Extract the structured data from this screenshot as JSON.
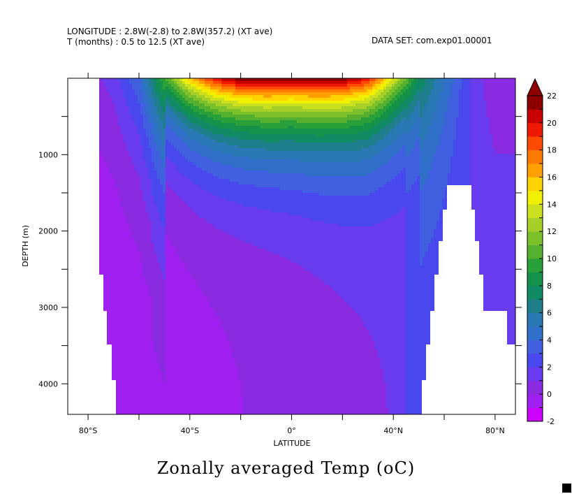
{
  "header": {
    "line1": "LONGITUDE : 2.8W(-2.8) to 2.8W(357.2) (XT ave)",
    "line2": "T (months) : 0.5 to 12.5 (XT ave)",
    "dataset": "DATA SET: com.exp01.00001"
  },
  "chart_data": {
    "type": "filled-contour",
    "title": "Zonally averaged Temp (oC)",
    "xlabel": "LATITUDE",
    "ylabel": "DEPTH (m)",
    "xlim": [
      -88,
      88
    ],
    "ylim": [
      4400,
      0
    ],
    "y_inverted": true,
    "x_ticks": [
      {
        "value": -80,
        "label": "80°S"
      },
      {
        "value": -40,
        "label": "40°S"
      },
      {
        "value": 0,
        "label": "0°"
      },
      {
        "value": 40,
        "label": "40°N"
      },
      {
        "value": 80,
        "label": "80°N"
      }
    ],
    "x_minor_ticks": [
      -60,
      -20,
      20,
      60
    ],
    "y_ticks": [
      {
        "value": 1000,
        "label": "1000"
      },
      {
        "value": 2000,
        "label": "2000"
      },
      {
        "value": 3000,
        "label": "3000"
      },
      {
        "value": 4000,
        "label": "4000"
      }
    ],
    "y_minor_ticks": [
      500,
      1500,
      2500,
      3500
    ],
    "colorbar": {
      "min": -2,
      "max": 22,
      "step": 1,
      "labels": [
        "-2",
        "0",
        "2",
        "4",
        "6",
        "8",
        "10",
        "12",
        "14",
        "16",
        "18",
        "20",
        "22"
      ],
      "extend": "max",
      "colors": [
        "#cc00ff",
        "#a020f0",
        "#8a2be2",
        "#6a3cf0",
        "#4848ee",
        "#4060e0",
        "#3070c8",
        "#2a78b4",
        "#1e7e8c",
        "#108a64",
        "#15924a",
        "#2aa03a",
        "#56b030",
        "#7cc02c",
        "#a6d028",
        "#cce020",
        "#f0f000",
        "#ffd200",
        "#ffa000",
        "#ff7a00",
        "#ff4a00",
        "#f01800",
        "#c80000",
        "#8e0000"
      ]
    },
    "temperature_profile_by_latitude": {
      "latitude": [
        -80,
        -70,
        -60,
        -50,
        -40,
        -30,
        -20,
        -10,
        0,
        10,
        20,
        30,
        40,
        50,
        60,
        70,
        80
      ],
      "surface_temp": [
        0.5,
        1.5,
        4,
        10,
        16,
        20,
        22,
        22.5,
        22,
        22.5,
        22,
        20,
        14,
        8,
        5,
        2,
        0
      ]
    },
    "deep_water_temp": {
      "south": -1,
      "north": 2
    }
  }
}
